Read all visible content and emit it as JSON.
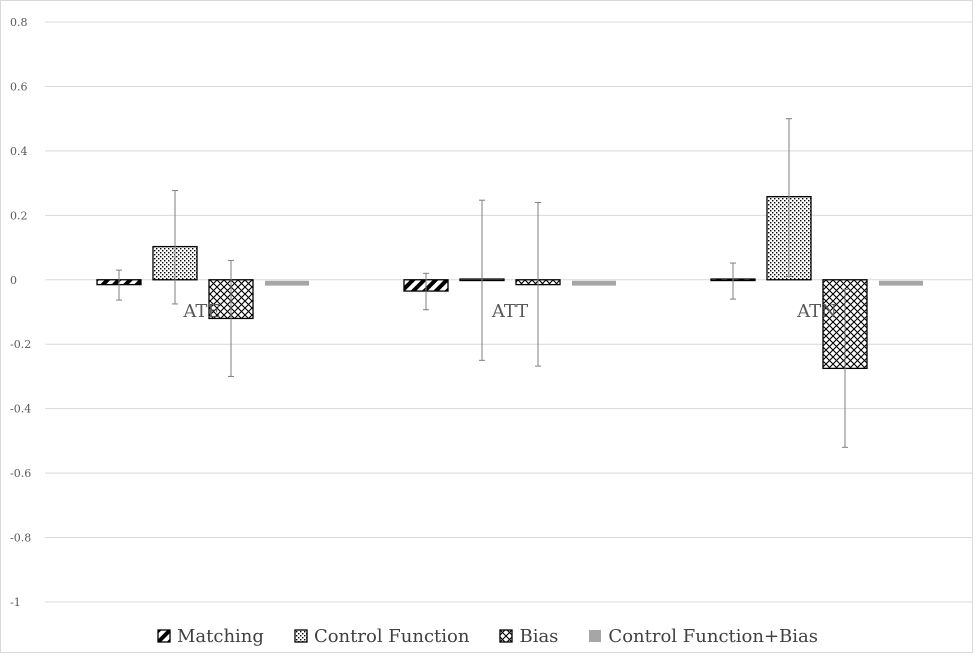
{
  "chart_data": {
    "type": "bar",
    "categories": [
      "ATE",
      "ATT",
      "ATN"
    ],
    "ylim": [
      -1,
      0.8
    ],
    "yticks": [
      "0.8",
      "0.6",
      "0.4",
      "0.2",
      "0",
      "-0.2",
      "-0.4",
      "-0.6",
      "-0.8",
      "-1"
    ],
    "ytick_values": [
      0.8,
      0.6,
      0.4,
      0.2,
      0,
      -0.2,
      -0.4,
      -0.6,
      -0.8,
      -1
    ],
    "grid": true,
    "legend_position": "bottom",
    "series": [
      {
        "name": "Matching",
        "values": [
          -0.015,
          -0.035,
          -0.003
        ],
        "err_high": [
          0.03,
          0.02,
          0.052
        ],
        "err_low": [
          -0.063,
          -0.093,
          -0.06
        ],
        "pattern": "diagonal-stripes",
        "color": "#000000"
      },
      {
        "name": "Control Function",
        "values": [
          0.103,
          0.003,
          0.258
        ],
        "err_high": [
          0.277,
          0.247,
          0.5
        ],
        "err_low": [
          -0.075,
          -0.25,
          0.01
        ],
        "pattern": "dots",
        "color": "#000000"
      },
      {
        "name": "Bias",
        "values": [
          -0.12,
          -0.015,
          -0.275
        ],
        "err_high": [
          0.06,
          0.24,
          -0.03
        ],
        "err_low": [
          -0.3,
          -0.268,
          -0.52
        ],
        "pattern": "crosshatch",
        "color": "#000000"
      },
      {
        "name": "Control Function+Bias",
        "values": [
          -0.015,
          -0.015,
          -0.015
        ],
        "pattern": "solid",
        "color": "#a6a6a6"
      }
    ]
  }
}
